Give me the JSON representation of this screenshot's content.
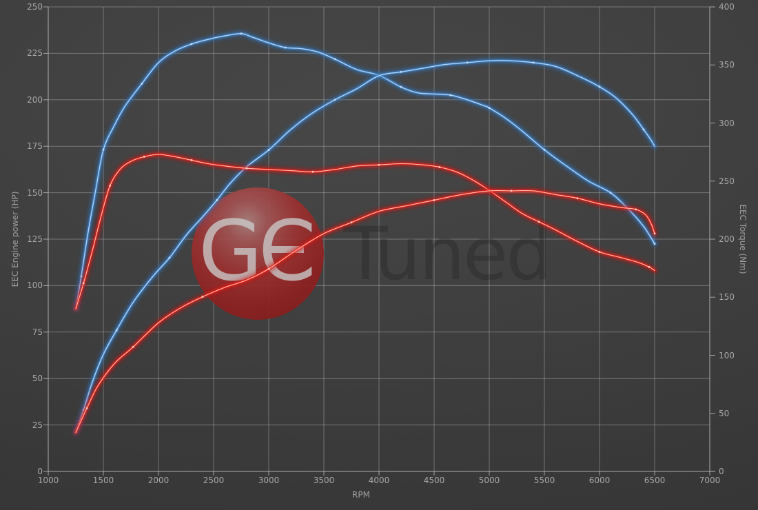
{
  "watermark": {
    "brand": "GЄ",
    "suffix": "Tuned"
  },
  "colors": {
    "background": "#3d3d3d",
    "grid": "#c8c8c8",
    "tick_text": "#a8a8a8",
    "blue_glow": "#2a6cb4",
    "blue_mid": "#4a8fd6",
    "blue_core": "#c9e1f8",
    "red_glow": "#c61111",
    "red_mid": "#ee2211",
    "red_core": "#ffd2cb",
    "watermark_ball": "#9a2a2a"
  },
  "chart_data": {
    "type": "line",
    "title": "",
    "xlabel": "RPM",
    "ylabel_left": "EEC Engine power (HP)",
    "ylabel_right": "EEC Torque (Nm)",
    "x_range": [
      1000,
      7000
    ],
    "x_ticks": [
      1000,
      1500,
      2000,
      2500,
      3000,
      3500,
      4000,
      4500,
      5000,
      5500,
      6000,
      6500,
      7000
    ],
    "y_left_range": [
      0,
      250
    ],
    "y_left_ticks": [
      0,
      25,
      50,
      75,
      100,
      125,
      150,
      175,
      200,
      225,
      250
    ],
    "y_right_range": [
      0,
      400
    ],
    "y_right_ticks": [
      0,
      50,
      100,
      150,
      200,
      250,
      300,
      350,
      400
    ],
    "grid": true,
    "legend": "none",
    "series": [
      {
        "name": "blue_torque",
        "axis": "right",
        "color_key": "blue",
        "unit": "Nm",
        "points": [
          [
            1250,
            140
          ],
          [
            1300,
            168
          ],
          [
            1360,
            205
          ],
          [
            1430,
            242
          ],
          [
            1500,
            277
          ],
          [
            1600,
            298
          ],
          [
            1700,
            315
          ],
          [
            1850,
            334
          ],
          [
            2000,
            352
          ],
          [
            2150,
            362
          ],
          [
            2300,
            368
          ],
          [
            2450,
            372
          ],
          [
            2600,
            375
          ],
          [
            2750,
            377
          ],
          [
            2850,
            374
          ],
          [
            3000,
            369
          ],
          [
            3150,
            365
          ],
          [
            3300,
            364
          ],
          [
            3450,
            361
          ],
          [
            3600,
            355
          ],
          [
            3800,
            346
          ],
          [
            4000,
            341
          ],
          [
            4200,
            331
          ],
          [
            4350,
            326
          ],
          [
            4500,
            325
          ],
          [
            4650,
            324
          ],
          [
            4800,
            320
          ],
          [
            4950,
            315
          ],
          [
            5000,
            313
          ],
          [
            5150,
            304
          ],
          [
            5300,
            293
          ],
          [
            5500,
            277
          ],
          [
            5700,
            263
          ],
          [
            5900,
            250
          ],
          [
            6100,
            240
          ],
          [
            6250,
            227
          ],
          [
            6400,
            211
          ],
          [
            6500,
            196
          ]
        ]
      },
      {
        "name": "blue_power",
        "axis": "left",
        "color_key": "blue",
        "unit": "HP",
        "points": [
          [
            1250,
            21
          ],
          [
            1320,
            33
          ],
          [
            1400,
            48
          ],
          [
            1500,
            63
          ],
          [
            1620,
            76
          ],
          [
            1770,
            91
          ],
          [
            1950,
            105
          ],
          [
            2100,
            115
          ],
          [
            2250,
            127
          ],
          [
            2400,
            137
          ],
          [
            2530,
            146
          ],
          [
            2650,
            155
          ],
          [
            2800,
            164
          ],
          [
            3000,
            173
          ],
          [
            3200,
            184
          ],
          [
            3400,
            193
          ],
          [
            3600,
            200
          ],
          [
            3800,
            206
          ],
          [
            4000,
            213
          ],
          [
            4200,
            215
          ],
          [
            4400,
            217
          ],
          [
            4600,
            219
          ],
          [
            4800,
            220
          ],
          [
            5000,
            221
          ],
          [
            5200,
            221
          ],
          [
            5400,
            220
          ],
          [
            5600,
            218
          ],
          [
            5800,
            213
          ],
          [
            6000,
            207
          ],
          [
            6150,
            201
          ],
          [
            6300,
            192
          ],
          [
            6400,
            184
          ],
          [
            6460,
            179
          ],
          [
            6500,
            175
          ]
        ]
      },
      {
        "name": "red_torque",
        "axis": "right",
        "color_key": "red",
        "unit": "Nm",
        "points": [
          [
            1250,
            140
          ],
          [
            1320,
            162
          ],
          [
            1400,
            190
          ],
          [
            1480,
            220
          ],
          [
            1560,
            246
          ],
          [
            1650,
            260
          ],
          [
            1750,
            267
          ],
          [
            1870,
            271
          ],
          [
            2000,
            273
          ],
          [
            2150,
            271
          ],
          [
            2300,
            268
          ],
          [
            2450,
            265
          ],
          [
            2600,
            263
          ],
          [
            2800,
            261
          ],
          [
            3000,
            260
          ],
          [
            3200,
            259
          ],
          [
            3400,
            258
          ],
          [
            3600,
            260
          ],
          [
            3800,
            263
          ],
          [
            4000,
            264
          ],
          [
            4200,
            265
          ],
          [
            4400,
            264
          ],
          [
            4550,
            262
          ],
          [
            4700,
            258
          ],
          [
            4850,
            251
          ],
          [
            5000,
            242
          ],
          [
            5150,
            232
          ],
          [
            5300,
            222
          ],
          [
            5450,
            215
          ],
          [
            5600,
            208
          ],
          [
            5800,
            198
          ],
          [
            6000,
            189
          ],
          [
            6200,
            184
          ],
          [
            6350,
            180
          ],
          [
            6450,
            176
          ],
          [
            6500,
            173
          ]
        ]
      },
      {
        "name": "red_power",
        "axis": "left",
        "color_key": "red",
        "unit": "HP",
        "points": [
          [
            1250,
            21
          ],
          [
            1350,
            34
          ],
          [
            1450,
            46
          ],
          [
            1600,
            58
          ],
          [
            1770,
            67
          ],
          [
            2000,
            80
          ],
          [
            2200,
            88
          ],
          [
            2400,
            94
          ],
          [
            2600,
            99
          ],
          [
            2800,
            103
          ],
          [
            3000,
            109
          ],
          [
            3250,
            119
          ],
          [
            3500,
            128
          ],
          [
            3750,
            134
          ],
          [
            4000,
            140
          ],
          [
            4250,
            143
          ],
          [
            4500,
            146
          ],
          [
            4750,
            149
          ],
          [
            5000,
            151
          ],
          [
            5200,
            151
          ],
          [
            5400,
            151
          ],
          [
            5600,
            149
          ],
          [
            5800,
            147
          ],
          [
            6000,
            144
          ],
          [
            6200,
            142
          ],
          [
            6330,
            141
          ],
          [
            6420,
            138
          ],
          [
            6470,
            133
          ],
          [
            6500,
            128
          ]
        ]
      }
    ]
  }
}
